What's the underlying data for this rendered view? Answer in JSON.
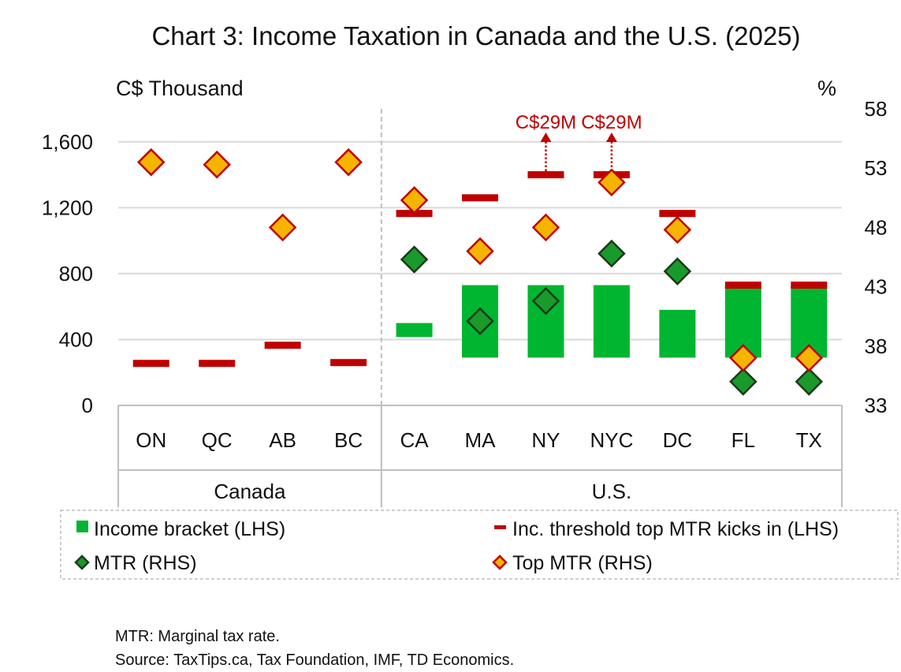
{
  "title": "Chart 3: Income Taxation in Canada and the U.S. (2025)",
  "notes": [
    "MTR: Marginal tax rate.",
    "Source: TaxTips.ca, Tax Foundation, IMF, TD Economics."
  ],
  "colors": {
    "bracket": "#00b530",
    "threshold": "#c00000",
    "mtr": "#1a9a2a",
    "top_mtr": "#f5b400",
    "top_mtr_border": "#c00000",
    "grid": "#d9d9d9"
  },
  "chart_data": {
    "type": "bar",
    "title": "Chart 3: Income Taxation in Canada and the U.S. (2025)",
    "y_left_label": "C$ Thousand",
    "y_right_label": "%",
    "y_left_range": [
      0,
      1800
    ],
    "y_left_ticks": [
      "0",
      "400",
      "800",
      "1,200",
      "1,600"
    ],
    "y_left_tick_values": [
      0,
      400,
      800,
      1200,
      1600
    ],
    "y_right_range": [
      33,
      58
    ],
    "y_right_ticks": [
      "33",
      "38",
      "43",
      "48",
      "53",
      "58"
    ],
    "y_right_tick_values": [
      33,
      38,
      43,
      48,
      53,
      58
    ],
    "grid": true,
    "legend_position": "bottom",
    "categories": [
      "ON",
      "QC",
      "AB",
      "BC",
      "CA",
      "MA",
      "NY",
      "NYC",
      "DC",
      "FL",
      "TX"
    ],
    "groups": [
      {
        "label": "Canada",
        "categories": [
          "ON",
          "QC",
          "AB",
          "BC"
        ]
      },
      {
        "label": "U.S.",
        "categories": [
          "CA",
          "MA",
          "NY",
          "NYC",
          "DC",
          "FL",
          "TX"
        ]
      }
    ],
    "series": [
      {
        "name": "Income bracket (LHS)",
        "type": "floating-bar",
        "axis": "left",
        "low": [
          null,
          null,
          null,
          null,
          415,
          290,
          290,
          290,
          290,
          290,
          290
        ],
        "high": [
          null,
          null,
          null,
          null,
          500,
          730,
          730,
          730,
          580,
          730,
          730
        ]
      },
      {
        "name": "Inc. threshold top MTR kicks in (LHS)",
        "type": "dash",
        "axis": "left",
        "values": [
          255,
          255,
          365,
          260,
          1165,
          1260,
          1400,
          1400,
          1165,
          730,
          730
        ]
      },
      {
        "name": "MTR (RHS)",
        "type": "diamond",
        "axis": "right",
        "values": [
          null,
          null,
          null,
          null,
          45.3,
          40.1,
          41.8,
          45.8,
          44.3,
          35.0,
          35.0
        ]
      },
      {
        "name": "Top MTR (RHS)",
        "type": "diamond",
        "axis": "right",
        "values": [
          53.5,
          53.3,
          48.0,
          53.5,
          50.3,
          46.0,
          48.0,
          51.8,
          47.8,
          37.0,
          37.0
        ]
      }
    ],
    "annotations": [
      {
        "category": "NY",
        "text": "C$29M"
      },
      {
        "category": "NYC",
        "text": "C$29M"
      }
    ]
  }
}
